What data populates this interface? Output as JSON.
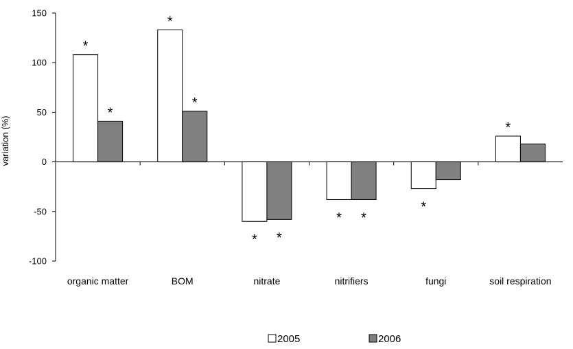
{
  "chart_data": {
    "type": "bar",
    "ylabel": "variation (%)",
    "ylim": [
      -100,
      150
    ],
    "yticks": [
      -100,
      -50,
      0,
      50,
      100,
      150
    ],
    "categories": [
      "organic matter",
      "BOM",
      "nitrate",
      "nitrifiers",
      "fungi",
      "soil respiration"
    ],
    "series": [
      {
        "name": "2005",
        "color": "#ffffff",
        "values": [
          108,
          133,
          -60,
          -38,
          -27,
          26
        ],
        "significant": [
          true,
          true,
          true,
          true,
          true,
          true
        ]
      },
      {
        "name": "2006",
        "color": "#808080",
        "values": [
          41,
          51,
          -58,
          -38,
          -18,
          18
        ],
        "significant": [
          true,
          true,
          true,
          true,
          false,
          false
        ]
      }
    ],
    "significance_marker": "*",
    "grid": false,
    "legend": "bottom"
  }
}
